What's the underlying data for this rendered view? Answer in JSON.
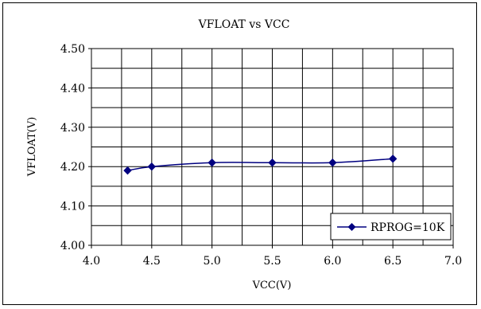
{
  "chart_data": {
    "type": "line",
    "title": "VFLOAT vs VCC",
    "xlabel": "VCC(V)",
    "ylabel": "VFLOAT(V)",
    "xlim": [
      4.0,
      7.0
    ],
    "ylim": [
      4.0,
      4.5
    ],
    "x_ticks": [
      "4.0",
      "4.5",
      "5.0",
      "5.5",
      "6.0",
      "6.5",
      "7.0"
    ],
    "y_ticks": [
      "4.50",
      "4.40",
      "4.30",
      "4.20",
      "4.10",
      "4.00"
    ],
    "grid": true,
    "legend_position": "bottom-right",
    "series": [
      {
        "name": "RPROG=10K",
        "color": "#000080",
        "marker": "diamond",
        "x": [
          4.3,
          4.5,
          5.0,
          5.5,
          6.0,
          6.5
        ],
        "y": [
          4.19,
          4.2,
          4.21,
          4.21,
          4.21,
          4.22
        ]
      }
    ]
  }
}
